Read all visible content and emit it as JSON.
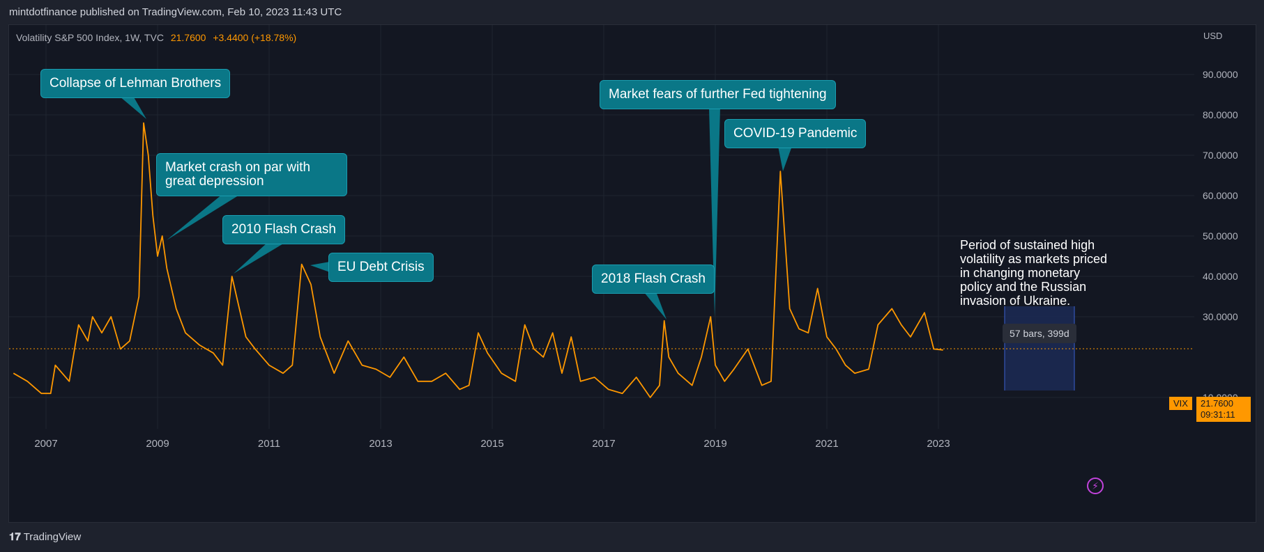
{
  "header": {
    "published_by": "mintdotfinance published on TradingView.com, Feb 10, 2023 11:43 UTC"
  },
  "legend": {
    "symbol": "Volatility S&P 500 Index, 1W, TVC",
    "last": "21.7600",
    "change": "+3.4400 (+18.78%)"
  },
  "price_axis": {
    "currency": "USD",
    "labels": [
      "90.0000",
      "80.0000",
      "70.0000",
      "60.0000",
      "50.0000",
      "40.0000",
      "30.0000",
      "10.0000"
    ]
  },
  "time_axis": {
    "labels": [
      "2007",
      "2009",
      "2011",
      "2013",
      "2015",
      "2017",
      "2019",
      "2021",
      "2023"
    ]
  },
  "annotations": {
    "lehman": "Collapse of Lehman Brothers",
    "crash_line1": "Market crash on par with",
    "crash_line2": "great depression",
    "flash2010": "2010 Flash Crash",
    "eu_debt": "EU Debt Crisis",
    "fed": "Market fears of further Fed tightening",
    "covid": "COVID-19 Pandemic",
    "flash2018": "2018 Flash Crash",
    "note_lines": [
      "Period of sustained high",
      "volatility as markets priced",
      "in changing monetary",
      "policy and the Russian",
      "invasion of Ukraine."
    ],
    "measure": "57 bars, 399d"
  },
  "price_tags": {
    "symbol": "VIX",
    "price": "21.7600",
    "countdown": "09:31:11"
  },
  "footer": {
    "logo_text": "TradingView"
  },
  "colors": {
    "line": "#ff9800",
    "callout_bg": "#0a7787",
    "background": "#131722",
    "grid": "#1f2430",
    "measure_box": "#1c2a55"
  },
  "chart_data": {
    "type": "line",
    "title": "",
    "xlabel": "",
    "ylabel": "",
    "ylim": [
      4,
      97
    ],
    "series": [
      {
        "name": "",
        "x": [
          "2006-06",
          "2006-09",
          "2006-12",
          "2007-02",
          "2007-03",
          "2007-06",
          "2007-08",
          "2007-10",
          "2007-11",
          "2008-01",
          "2008-03",
          "2008-05",
          "2008-07",
          "2008-09",
          "2008-10",
          "2008-11",
          "2008-12",
          "2009-01",
          "2009-02",
          "2009-03",
          "2009-05",
          "2009-07",
          "2009-10",
          "2010-01",
          "2010-03",
          "2010-05",
          "2010-06",
          "2010-08",
          "2010-10",
          "2011-01",
          "2011-04",
          "2011-06",
          "2011-08",
          "2011-10",
          "2011-12",
          "2012-03",
          "2012-06",
          "2012-09",
          "2012-12",
          "2013-03",
          "2013-06",
          "2013-09",
          "2013-12",
          "2014-03",
          "2014-06",
          "2014-08",
          "2014-10",
          "2014-12",
          "2015-03",
          "2015-06",
          "2015-08",
          "2015-10",
          "2015-12",
          "2016-02",
          "2016-04",
          "2016-06",
          "2016-08",
          "2016-11",
          "2017-02",
          "2017-05",
          "2017-08",
          "2017-11",
          "2018-01",
          "2018-02",
          "2018-03",
          "2018-05",
          "2018-08",
          "2018-10",
          "2018-12",
          "2019-01",
          "2019-03",
          "2019-05",
          "2019-08",
          "2019-11",
          "2020-01",
          "2020-03",
          "2020-05",
          "2020-07",
          "2020-09",
          "2020-11",
          "2021-01",
          "2021-03",
          "2021-05",
          "2021-07",
          "2021-10",
          "2021-12",
          "2022-03",
          "2022-05",
          "2022-07",
          "2022-10",
          "2022-12",
          "2023-02"
        ],
        "y": [
          16,
          14,
          11,
          11,
          18,
          14,
          28,
          24,
          30,
          26,
          30,
          22,
          24,
          35,
          78,
          70,
          55,
          45,
          50,
          42,
          32,
          26,
          23,
          21,
          18,
          40,
          35,
          25,
          22,
          18,
          16,
          18,
          43,
          38,
          25,
          16,
          24,
          18,
          17,
          15,
          20,
          14,
          14,
          16,
          12,
          13,
          26,
          21,
          16,
          14,
          28,
          22,
          20,
          26,
          16,
          25,
          14,
          15,
          12,
          11,
          15,
          10,
          13,
          29,
          20,
          16,
          13,
          20,
          30,
          18,
          14,
          17,
          22,
          13,
          14,
          66,
          32,
          27,
          26,
          37,
          25,
          22,
          18,
          16,
          17,
          28,
          32,
          28,
          25,
          31,
          22,
          21.76
        ]
      }
    ]
  }
}
